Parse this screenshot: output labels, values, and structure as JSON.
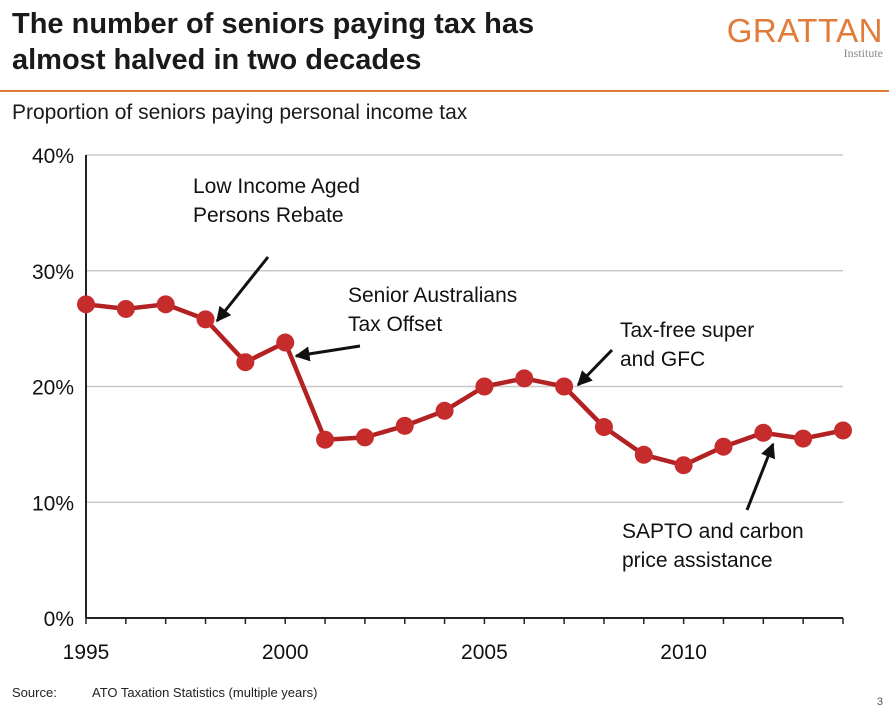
{
  "header": {
    "title_line1": "The number of seniors paying tax has",
    "title_line2": "almost halved in two decades",
    "logo_main": "GRATTAN",
    "logo_sub": "Institute"
  },
  "subtitle": "Proportion of seniors paying personal income tax",
  "footer": {
    "source_label": "Source:",
    "source_text": "ATO Taxation Statistics (multiple years)",
    "page_number": "3"
  },
  "colors": {
    "line": "#b22222",
    "marker": "#c62c2c",
    "grid": "#c8c8c8",
    "accent": "#e07b39"
  },
  "chart_data": {
    "type": "line",
    "title": "Proportion of seniors paying personal income tax",
    "xlabel": "",
    "ylabel": "",
    "ylim": [
      0,
      40
    ],
    "xlim": [
      1995,
      2014
    ],
    "yticks": [
      "0%",
      "10%",
      "20%",
      "30%",
      "40%"
    ],
    "xticks": [
      "1995",
      "2000",
      "2005",
      "2010"
    ],
    "grid": "horizontal",
    "series": [
      {
        "x": [
          1995,
          1996,
          1997,
          1998,
          1999,
          2000,
          2001,
          2002,
          2003,
          2004,
          2005,
          2006,
          2007,
          2008,
          2009,
          2010,
          2011,
          2012,
          2013,
          2014
        ],
        "values": [
          27.1,
          26.7,
          27.1,
          25.8,
          22.1,
          23.8,
          15.4,
          15.6,
          16.6,
          17.9,
          20.0,
          20.7,
          20.0,
          16.5,
          14.1,
          13.2,
          14.8,
          16.0,
          15.5,
          16.2
        ]
      }
    ],
    "annotations": [
      {
        "lines": [
          "Low Income Aged",
          "Persons Rebate"
        ],
        "year": 1998
      },
      {
        "lines": [
          "Senior Australians",
          "Tax Offset"
        ],
        "year": 2000
      },
      {
        "lines": [
          "Tax-free super",
          "and GFC"
        ],
        "year": 2007
      },
      {
        "lines": [
          "SAPTO and carbon",
          "price assistance"
        ],
        "year": 2012
      }
    ]
  }
}
